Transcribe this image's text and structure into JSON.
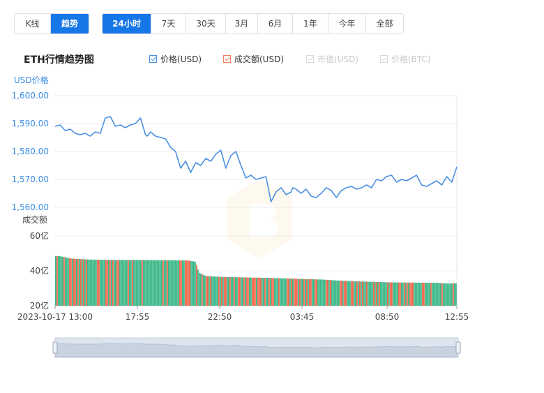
{
  "chart_mode_tabs": [
    {
      "label": "K线",
      "active": false
    },
    {
      "label": "趋势",
      "active": true
    }
  ],
  "range_tabs": [
    {
      "label": "24小时",
      "active": true
    },
    {
      "label": "7天",
      "active": false
    },
    {
      "label": "30天",
      "active": false
    },
    {
      "label": "3月",
      "active": false
    },
    {
      "label": "6月",
      "active": false
    },
    {
      "label": "1年",
      "active": false
    },
    {
      "label": "今年",
      "active": false
    },
    {
      "label": "全部",
      "active": false
    }
  ],
  "legend": [
    {
      "label": "价格(USD)",
      "enabled": true,
      "color": "#4a90e2"
    },
    {
      "label": "成交额(USD)",
      "enabled": true,
      "color": "#f08060"
    },
    {
      "label": "市值(USD)",
      "enabled": false,
      "color": "#d8d8d8"
    },
    {
      "label": "价格(BTC)",
      "enabled": false,
      "color": "#d8d8d8"
    }
  ],
  "colors": {
    "accent": "#1677e8",
    "price_line": "#4a90e2",
    "volume_up": "#3cb888",
    "volume_down": "#f0694f",
    "grid": "#ececec"
  },
  "chart_data": {
    "type": "line",
    "title": "ETH行情趋势图",
    "price_axis_label": "USD价格",
    "volume_axis_label": "成交额",
    "price_ylim": [
      1555,
      1600
    ],
    "price_ticks": [
      "1,600.00",
      "1,590.00",
      "1,580.00",
      "1,570.00",
      "1,560.00"
    ],
    "price_tick_values": [
      1600,
      1590,
      1580,
      1570,
      1560
    ],
    "volume_ylim": [
      20,
      60
    ],
    "volume_ticks": [
      "60亿",
      "40亿",
      "20亿"
    ],
    "volume_tick_values": [
      60,
      40,
      20
    ],
    "x_tick_labels": [
      "2023-10-17 13:00",
      "17:55",
      "22:50",
      "03:45",
      "08:50",
      "12:55"
    ],
    "x_tick_hours": [
      0,
      4.917,
      9.833,
      14.75,
      19.833,
      24
    ],
    "price_series": {
      "name": "价格(USD)",
      "hours": [
        0,
        0.3,
        0.6,
        0.9,
        1.2,
        1.5,
        1.8,
        2.1,
        2.4,
        2.7,
        3.0,
        3.3,
        3.6,
        3.9,
        4.2,
        4.5,
        4.8,
        5.1,
        5.4,
        5.5,
        5.7,
        6.0,
        6.3,
        6.6,
        6.9,
        7.2,
        7.5,
        7.8,
        8.1,
        8.4,
        8.7,
        9.0,
        9.3,
        9.6,
        9.9,
        10.2,
        10.5,
        10.8,
        11.1,
        11.4,
        11.7,
        12.0,
        12.3,
        12.6,
        12.9,
        13.2,
        13.5,
        13.8,
        14.1,
        14.2,
        14.4,
        14.7,
        15.0,
        15.3,
        15.6,
        15.9,
        16.2,
        16.5,
        16.8,
        17.1,
        17.4,
        17.7,
        18.0,
        18.3,
        18.6,
        18.9,
        19.2,
        19.5,
        19.8,
        20.1,
        20.4,
        20.7,
        21.0,
        21.3,
        21.6,
        21.9,
        22.2,
        22.5,
        22.8,
        23.1,
        23.4,
        23.7,
        24.0
      ],
      "values": [
        1589,
        1589.5,
        1587.5,
        1588,
        1586.5,
        1586,
        1586.5,
        1585.5,
        1587,
        1586.5,
        1592,
        1592.5,
        1589,
        1589.5,
        1588.5,
        1589.5,
        1590,
        1592,
        1586,
        1585.5,
        1587,
        1585.5,
        1585,
        1584.5,
        1581.5,
        1580,
        1574,
        1576.5,
        1572.5,
        1576,
        1575,
        1577.5,
        1576.5,
        1579,
        1580.5,
        1574,
        1578.5,
        1580,
        1575,
        1570.5,
        1571.5,
        1570,
        1570.5,
        1571,
        1562,
        1565.5,
        1567,
        1564.5,
        1565.5,
        1567,
        1566.5,
        1565,
        1566.5,
        1564,
        1563.5,
        1565,
        1567,
        1566,
        1563.5,
        1566,
        1567,
        1567.5,
        1566.5,
        1567,
        1568,
        1567,
        1570,
        1569.5,
        1571,
        1571.5,
        1569,
        1570,
        1569.5,
        1570.5,
        1571.5,
        1568,
        1567.5,
        1568.5,
        1569.5,
        1568,
        1571,
        1569,
        1574.5
      ]
    },
    "volume_series": {
      "name": "成交额(USD)",
      "hours": [
        0,
        0.25,
        1.0,
        2.0,
        3.0,
        4.0,
        5.0,
        6.0,
        7.0,
        8.0,
        8.4,
        8.6,
        9.0,
        9.4,
        10.0,
        11.0,
        12.0,
        13.0,
        14.0,
        15.0,
        16.0,
        17.0,
        18.0,
        19.0,
        20.0,
        21.0,
        22.0,
        23.0,
        23.5,
        24.0
      ],
      "values": [
        48.5,
        48.5,
        47,
        46.5,
        46.3,
        46.2,
        46.2,
        46.1,
        46.1,
        45.9,
        45.2,
        39.0,
        37.1,
        36.8,
        36.5,
        36.3,
        36.1,
        35.9,
        35.6,
        35.3,
        35.0,
        34.4,
        34.0,
        33.7,
        33.4,
        33.3,
        33.2,
        33.1,
        32.7,
        32.9
      ]
    },
    "grid": true
  }
}
